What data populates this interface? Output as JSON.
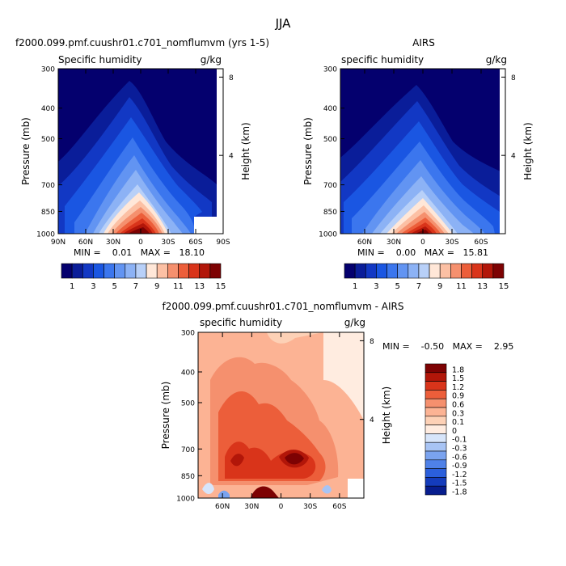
{
  "figure": {
    "title": "JJA"
  },
  "chart_data": [
    {
      "type": "heatmap",
      "panel_title": "f2000.099.pmf.cuushr01.c701_nomflumvm (yrs 1-5)",
      "left_label": "Specific humidity",
      "right_label": "g/kg",
      "ylabel": "Pressure (mb)",
      "ylabel_right": "Height (km)",
      "x_ticks": [
        "90N",
        "60N",
        "30N",
        "0",
        "30S",
        "60S",
        "90S"
      ],
      "y_ticks": [
        "300",
        "400",
        "500",
        "700",
        "850",
        "1000"
      ],
      "height_ticks": [
        "8",
        "4"
      ],
      "stats": "MIN =    0.01   MAX =   18.10",
      "colorbar": {
        "levels": [
          "1",
          "2",
          "3",
          "4",
          "5",
          "6",
          "7",
          "8",
          "9",
          "10",
          "11",
          "12",
          "13",
          "14",
          "15"
        ],
        "labels": [
          "1",
          "3",
          "5",
          "7",
          "9",
          "11",
          "13",
          "15"
        ]
      },
      "min": 0.01,
      "max": 18.1
    },
    {
      "type": "heatmap",
      "panel_title": "AIRS",
      "left_label": "specific humidity",
      "right_label": "g/kg",
      "ylabel": "Pressure (mb)",
      "ylabel_right": "Height (km)",
      "x_ticks": [
        "60N",
        "30N",
        "0",
        "30S",
        "60S"
      ],
      "y_ticks": [
        "300",
        "400",
        "500",
        "700",
        "850",
        "1000"
      ],
      "height_ticks": [
        "8",
        "4"
      ],
      "stats": "MIN =    0.00   MAX =   15.81",
      "colorbar": {
        "levels": [
          "1",
          "2",
          "3",
          "4",
          "5",
          "6",
          "7",
          "8",
          "9",
          "10",
          "11",
          "12",
          "13",
          "14",
          "15"
        ],
        "labels": [
          "1",
          "3",
          "5",
          "7",
          "9",
          "11",
          "13",
          "15"
        ]
      },
      "min": 0.0,
      "max": 15.81
    },
    {
      "type": "heatmap",
      "panel_title": "f2000.099.pmf.cuushr01.c701_nomflumvm - AIRS",
      "left_label": "specific humidity",
      "right_label": "g/kg",
      "ylabel": "Pressure (mb)",
      "ylabel_right": "Height (km)",
      "x_ticks": [
        "60N",
        "30N",
        "0",
        "30S",
        "60S"
      ],
      "y_ticks": [
        "300",
        "400",
        "500",
        "700",
        "850",
        "1000"
      ],
      "height_ticks": [
        "8",
        "4"
      ],
      "stats": "MIN =    -0.50   MAX =    2.95",
      "colorbar": {
        "labels": [
          "1.8",
          "1.5",
          "1.2",
          "0.9",
          "0.6",
          "0.3",
          "0.1",
          "0",
          "-0.1",
          "-0.3",
          "-0.6",
          "-0.9",
          "-1.2",
          "-1.5",
          "-1.8"
        ]
      },
      "min": -0.5,
      "max": 2.95
    }
  ],
  "colors": {
    "seq": [
      "#04006e",
      "#0a1d99",
      "#1238c4",
      "#1a56e2",
      "#3b76ee",
      "#6294f2",
      "#8cb2f5",
      "#b8d0f8",
      "#ffe7d8",
      "#fcc0a4",
      "#f5906e",
      "#ec5e3a",
      "#d9341a",
      "#b21609",
      "#7d0203"
    ],
    "diff": [
      "#7d0203",
      "#b21609",
      "#d9341a",
      "#ec5e3a",
      "#f5906e",
      "#fcb394",
      "#fdd1b6",
      "#ffece0",
      "#d7e5fa",
      "#a8c4f4",
      "#7aa3ef",
      "#4f81e8",
      "#2b5fdc",
      "#143cbc",
      "#071d8e"
    ]
  }
}
